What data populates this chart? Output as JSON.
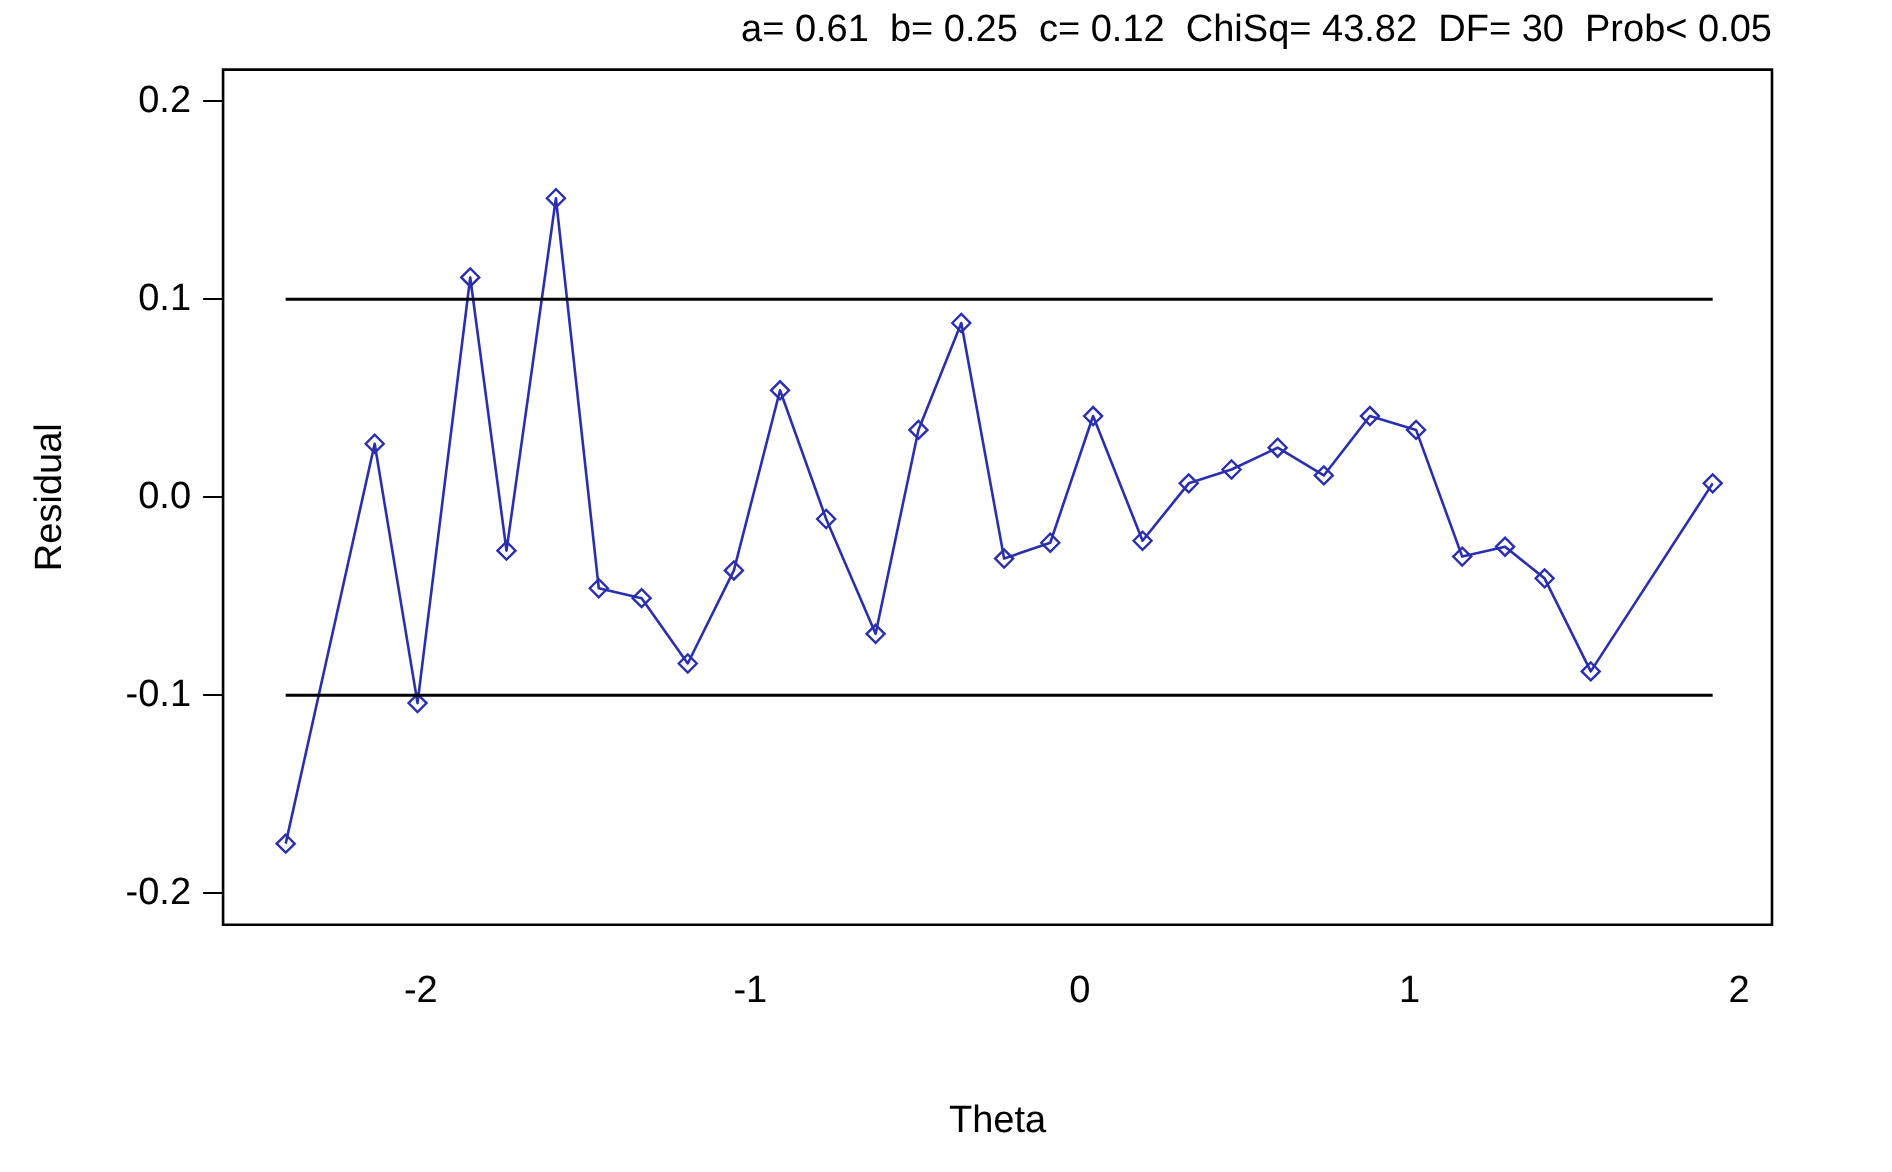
{
  "chart_data": {
    "type": "line",
    "title": "a= 0.61  b= 0.25  c= 0.12  ChiSq= 43.82  DF= 30  Prob< 0.05",
    "xlabel": "Theta",
    "ylabel": "Residual",
    "x": [
      -2.41,
      -2.14,
      -2.01,
      -1.85,
      -1.74,
      -1.59,
      -1.46,
      -1.33,
      -1.19,
      -1.05,
      -0.91,
      -0.77,
      -0.62,
      -0.49,
      -0.36,
      -0.23,
      -0.09,
      0.04,
      0.19,
      0.33,
      0.46,
      0.6,
      0.74,
      0.88,
      1.02,
      1.16,
      1.29,
      1.41,
      1.55,
      1.92
    ],
    "series": [
      {
        "color": "#2a2fb0",
        "values": [
          -0.175,
          0.027,
          -0.104,
          0.111,
          -0.027,
          0.151,
          -0.046,
          -0.051,
          -0.084,
          -0.037,
          0.054,
          -0.011,
          -0.069,
          0.034,
          0.088,
          -0.031,
          -0.023,
          0.041,
          -0.022,
          0.007,
          0.014,
          0.025,
          0.011,
          0.041,
          0.034,
          -0.03,
          -0.025,
          -0.041,
          -0.088,
          0.007
        ]
      }
    ],
    "xlim": [
      -2.6,
      2.1
    ],
    "xticks": [
      -2,
      -1,
      0,
      1,
      2
    ],
    "ylim": [
      -0.216,
      0.216
    ],
    "yticks": [
      -0.2,
      -0.1,
      {
        "value": 0,
        "label": "0.0"
      },
      0.1,
      0.2
    ],
    "ref_lines": [
      {
        "axis": "y",
        "value": 0.1,
        "color": "#000000"
      },
      {
        "axis": "y",
        "value": -0.1,
        "color": "#000000"
      }
    ],
    "marker": "diamond",
    "line_style": "solid",
    "grid": false,
    "legend": false
  }
}
